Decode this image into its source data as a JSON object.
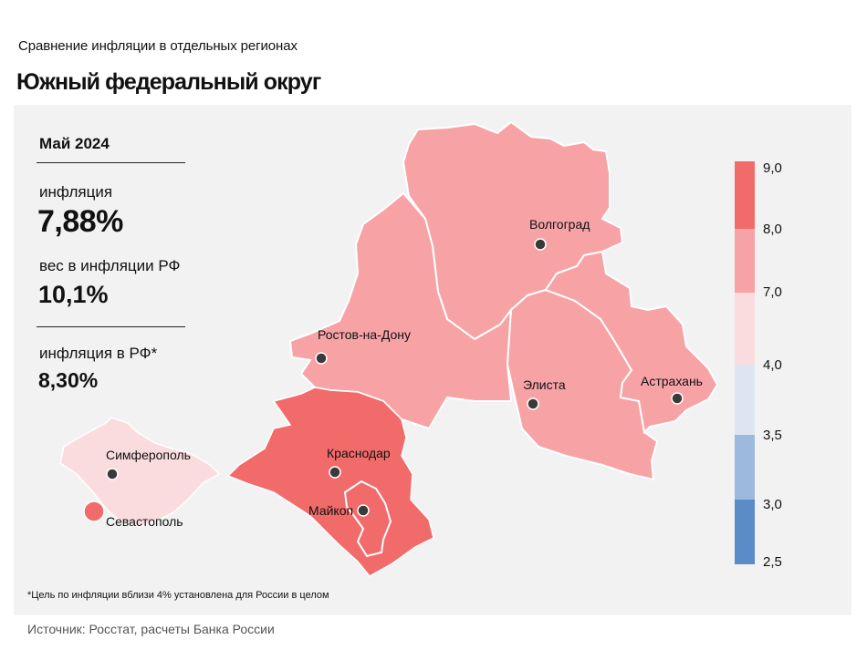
{
  "header": {
    "subtitle": "Сравнение  инфляции  в отдельных  регионах",
    "title": "Южный федеральный округ"
  },
  "info": {
    "period": "Май 2024",
    "inflation_label": "инфляция",
    "inflation_value": "7,88%",
    "weight_label": "вес в инфляции  РФ",
    "weight_value": "10,1%",
    "rf_label": "инфляция  в РФ*",
    "rf_value": "8,30%"
  },
  "cities": {
    "volgograd": "Волгоград",
    "rostov": "Ростов-на-Дону",
    "elista": "Элиста",
    "astrakhan": "Астрахань",
    "krasnodar": "Краснодар",
    "maykop": "Майкоп",
    "simferopol": "Симферополь",
    "sevastopol": "Севастополь"
  },
  "scale": {
    "labels": [
      "9,0",
      "8,0",
      "7,0",
      "4,0",
      "3,5",
      "3,0",
      "2,5"
    ],
    "colors": [
      "#f26b6b",
      "#f7a3a6",
      "#fadcde",
      "#dde5f2",
      "#9dbade",
      "#5b8cc8"
    ]
  },
  "region_colors": {
    "high": "#f26b6b",
    "mid": "#f7a3a6",
    "low": "#fadcde"
  },
  "footnote": "*Цель по инфляции вблизи 4% установлена для России в целом",
  "source": "Источник: Росстат, расчеты Банка России"
}
